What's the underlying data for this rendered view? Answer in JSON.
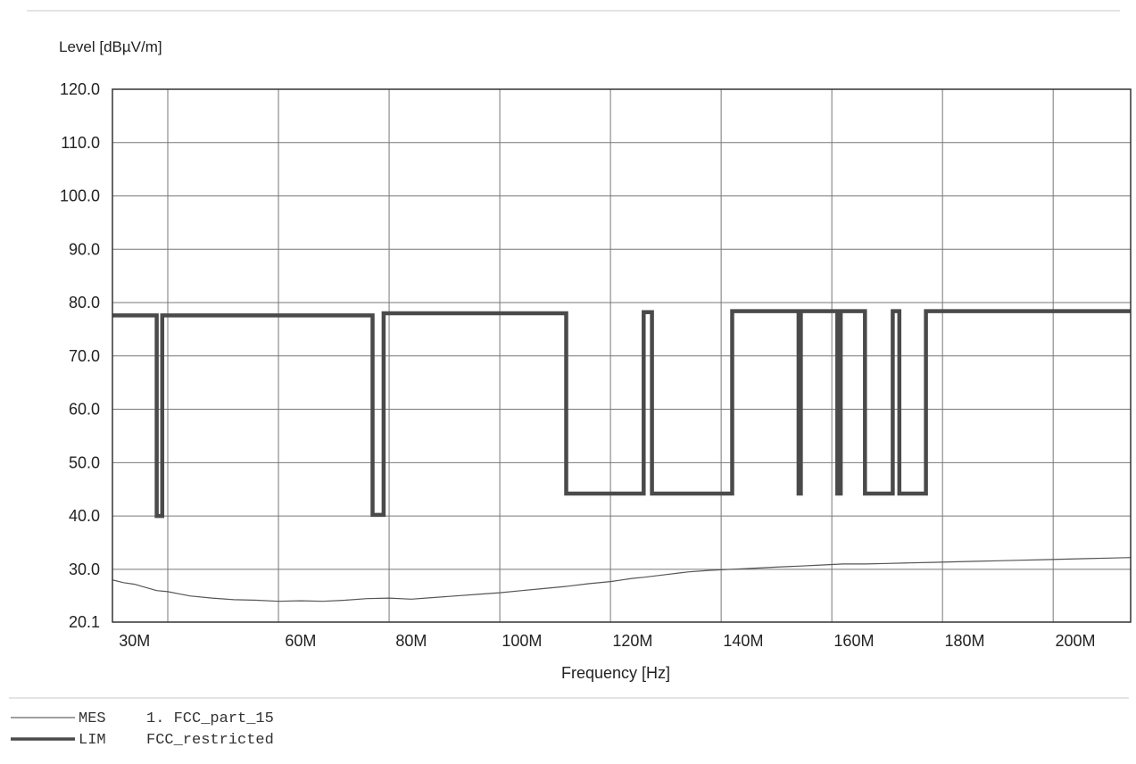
{
  "chart_data": {
    "type": "line",
    "ylabel": "Level [dBµV/m]",
    "xlabel": "Frequency [Hz]",
    "ylim": [
      20.1,
      120.0
    ],
    "yticks": [
      {
        "value": 120.0,
        "label": "120.0"
      },
      {
        "value": 110.0,
        "label": "110.0"
      },
      {
        "value": 100.0,
        "label": "100.0"
      },
      {
        "value": 90.0,
        "label": "90.0"
      },
      {
        "value": 80.0,
        "label": "80.0"
      },
      {
        "value": 70.0,
        "label": "70.0"
      },
      {
        "value": 60.0,
        "label": "60.0"
      },
      {
        "value": 50.0,
        "label": "50.0"
      },
      {
        "value": 40.0,
        "label": "40.0"
      },
      {
        "value": 30.0,
        "label": "30.0"
      },
      {
        "value": 20.1,
        "label": "20.1"
      }
    ],
    "xlim": [
      26,
      210
    ],
    "xticks": [
      {
        "value": 30,
        "label": "30M"
      },
      {
        "value": 60,
        "label": "60M"
      },
      {
        "value": 80,
        "label": "80M"
      },
      {
        "value": 100,
        "label": "100M"
      },
      {
        "value": 120,
        "label": "120M"
      },
      {
        "value": 140,
        "label": "140M"
      },
      {
        "value": 160,
        "label": "160M"
      },
      {
        "value": 180,
        "label": "180M"
      },
      {
        "value": 200,
        "label": "200M"
      }
    ],
    "x_gridlines": [
      36,
      56,
      76,
      96,
      116,
      136,
      156,
      176,
      196
    ],
    "grid": true,
    "legend_position": "bottom-left",
    "series": [
      {
        "name": "MES",
        "legend_text": "1. FCC_part_15",
        "style": "thin",
        "points": [
          [
            26,
            28.0
          ],
          [
            28,
            27.5
          ],
          [
            30,
            27.2
          ],
          [
            32,
            26.6
          ],
          [
            34,
            26.0
          ],
          [
            36,
            25.8
          ],
          [
            38,
            25.4
          ],
          [
            40,
            25.0
          ],
          [
            44,
            24.6
          ],
          [
            48,
            24.3
          ],
          [
            52,
            24.2
          ],
          [
            56,
            24.0
          ],
          [
            60,
            24.1
          ],
          [
            64,
            24.0
          ],
          [
            68,
            24.2
          ],
          [
            72,
            24.5
          ],
          [
            76,
            24.6
          ],
          [
            80,
            24.4
          ],
          [
            84,
            24.7
          ],
          [
            88,
            25.0
          ],
          [
            92,
            25.3
          ],
          [
            96,
            25.6
          ],
          [
            100,
            26.0
          ],
          [
            104,
            26.4
          ],
          [
            108,
            26.8
          ],
          [
            112,
            27.3
          ],
          [
            116,
            27.7
          ],
          [
            118,
            28.0
          ],
          [
            120,
            28.3
          ],
          [
            122,
            28.5
          ],
          [
            126,
            29.0
          ],
          [
            130,
            29.5
          ],
          [
            134,
            29.8
          ],
          [
            138,
            30.0
          ],
          [
            142,
            30.2
          ],
          [
            146,
            30.4
          ],
          [
            150,
            30.6
          ],
          [
            154,
            30.8
          ],
          [
            158,
            31.0
          ],
          [
            162,
            31.0
          ],
          [
            166,
            31.1
          ],
          [
            170,
            31.2
          ],
          [
            174,
            31.3
          ],
          [
            178,
            31.4
          ],
          [
            182,
            31.5
          ],
          [
            186,
            31.6
          ],
          [
            190,
            31.7
          ],
          [
            194,
            31.8
          ],
          [
            198,
            31.9
          ],
          [
            202,
            32.0
          ],
          [
            206,
            32.1
          ],
          [
            210,
            32.2
          ]
        ]
      },
      {
        "name": "LIM",
        "legend_text": "FCC_restricted",
        "style": "thick",
        "points": [
          [
            26,
            77.6
          ],
          [
            34,
            77.6
          ],
          [
            34,
            40
          ],
          [
            35,
            40
          ],
          [
            35,
            77.6
          ],
          [
            73,
            77.6
          ],
          [
            73,
            40.2
          ],
          [
            75,
            40.2
          ],
          [
            75,
            78.0
          ],
          [
            108,
            78.0
          ],
          [
            108,
            44.2
          ],
          [
            122,
            44.2
          ],
          [
            122,
            78.2
          ],
          [
            123.5,
            78.2
          ],
          [
            123.5,
            44.2
          ],
          [
            138,
            44.2
          ],
          [
            138,
            78.4
          ],
          [
            150,
            78.4
          ],
          [
            150,
            44.2
          ],
          [
            150.4,
            44.2
          ],
          [
            150.4,
            78.4
          ],
          [
            157,
            78.4
          ],
          [
            157,
            44.2
          ],
          [
            157.6,
            44.2
          ],
          [
            157.6,
            78.4
          ],
          [
            162,
            78.4
          ],
          [
            162,
            44.2
          ],
          [
            167,
            44.2
          ],
          [
            167,
            78.4
          ],
          [
            168.2,
            78.4
          ],
          [
            168.2,
            44.2
          ],
          [
            173,
            44.2
          ],
          [
            173,
            78.4
          ],
          [
            210,
            78.4
          ]
        ]
      }
    ]
  }
}
